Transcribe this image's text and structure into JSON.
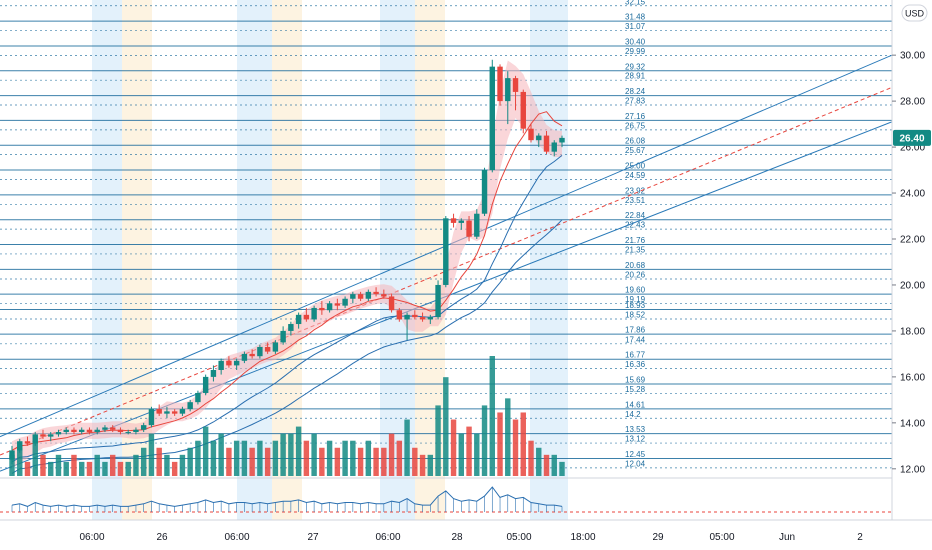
{
  "currency": "USD",
  "last_price": "26.40",
  "colors": {
    "up": "#138a84",
    "down": "#e8463e",
    "level_line": "#1a6a9c",
    "channel": "#2a7ab8",
    "ma_red": "#e8463e",
    "ma_blue": "#2a6fb0",
    "price_tag": "#138a84",
    "band_blue": "#e3f1fb",
    "band_orange": "#fdf3e1",
    "shade": "#f5b5b9"
  },
  "chart_data": {
    "type": "candlestick",
    "x_tick_labels": [
      "06:00",
      "26",
      "06:00",
      "27",
      "06:00",
      "28",
      "05:00",
      "18:00",
      "29",
      "05:00",
      "Jun",
      "2"
    ],
    "y_ticks": [
      12.0,
      14.0,
      16.0,
      18.0,
      20.0,
      22.0,
      24.0,
      26.0,
      28.0,
      30.0
    ],
    "y_tick_labels": [
      "12.00",
      "14.00",
      "16.00",
      "18.00",
      "20.00",
      "22.00",
      "24.00",
      "26.00",
      "28.00",
      "30.00"
    ],
    "ylim": [
      11.6,
      32.4
    ],
    "price_levels": [
      32.15,
      31.48,
      31.07,
      30.4,
      29.99,
      29.32,
      28.91,
      28.24,
      27.83,
      27.16,
      26.75,
      26.08,
      25.67,
      25.0,
      24.59,
      23.92,
      23.51,
      22.84,
      22.43,
      21.76,
      21.35,
      20.68,
      20.26,
      19.6,
      19.19,
      18.93,
      18.52,
      17.86,
      17.44,
      16.77,
      16.36,
      15.69,
      15.28,
      14.61,
      14.2,
      13.53,
      13.12,
      12.45,
      12.04
    ],
    "price_level_labels": [
      "32.15",
      "31.48",
      "31.07",
      "30.40",
      "29.99",
      "29.32",
      "28.91",
      "28.24",
      "27.83",
      "27.16",
      "26.75",
      "26.08",
      "25.67",
      "25.00",
      "24.59",
      "23.92",
      "23.51",
      "22.84",
      "22.43",
      "21.76",
      "21.35",
      "20.68",
      "20.26",
      "19.60",
      "19.19",
      "18.93",
      "18.52",
      "17.86",
      "17.44",
      "16.77",
      "16.36",
      "15.69",
      "15.28",
      "14.61",
      "14.2",
      "13.53",
      "13.12",
      "12.45",
      "12.04"
    ],
    "candles": [
      [
        12.4,
        13.0,
        12.2,
        12.8
      ],
      [
        12.8,
        13.3,
        12.7,
        13.2
      ],
      [
        13.2,
        13.4,
        13.0,
        13.1
      ],
      [
        13.1,
        13.6,
        13.0,
        13.5
      ],
      [
        13.5,
        13.7,
        13.3,
        13.4
      ],
      [
        13.4,
        13.6,
        13.2,
        13.5
      ],
      [
        13.5,
        13.7,
        13.4,
        13.6
      ],
      [
        13.6,
        13.8,
        13.5,
        13.7
      ],
      [
        13.7,
        13.8,
        13.5,
        13.6
      ],
      [
        13.6,
        13.8,
        13.5,
        13.7
      ],
      [
        13.7,
        13.8,
        13.5,
        13.6
      ],
      [
        13.6,
        13.8,
        13.5,
        13.7
      ],
      [
        13.7,
        13.9,
        13.6,
        13.8
      ],
      [
        13.8,
        13.9,
        13.6,
        13.7
      ],
      [
        13.7,
        13.8,
        13.5,
        13.6
      ],
      [
        13.6,
        13.7,
        13.5,
        13.6
      ],
      [
        13.6,
        13.8,
        13.5,
        13.7
      ],
      [
        13.7,
        14.0,
        13.6,
        13.9
      ],
      [
        13.9,
        14.7,
        13.8,
        14.6
      ],
      [
        14.6,
        14.8,
        14.3,
        14.4
      ],
      [
        14.4,
        14.7,
        14.2,
        14.5
      ],
      [
        14.5,
        14.6,
        14.3,
        14.4
      ],
      [
        14.4,
        14.7,
        14.3,
        14.6
      ],
      [
        14.6,
        15.0,
        14.5,
        14.9
      ],
      [
        14.9,
        15.4,
        14.8,
        15.3
      ],
      [
        15.3,
        16.1,
        15.2,
        16.0
      ],
      [
        16.0,
        16.5,
        15.8,
        16.3
      ],
      [
        16.3,
        16.8,
        16.1,
        16.7
      ],
      [
        16.7,
        16.9,
        16.4,
        16.5
      ],
      [
        16.5,
        16.8,
        16.3,
        16.7
      ],
      [
        16.7,
        17.1,
        16.6,
        17.0
      ],
      [
        17.0,
        17.2,
        16.8,
        16.9
      ],
      [
        16.9,
        17.4,
        16.8,
        17.3
      ],
      [
        17.3,
        17.5,
        17.0,
        17.1
      ],
      [
        17.1,
        17.6,
        17.0,
        17.5
      ],
      [
        17.5,
        18.2,
        17.4,
        18.0
      ],
      [
        18.0,
        18.4,
        17.8,
        18.3
      ],
      [
        18.3,
        18.8,
        18.1,
        18.7
      ],
      [
        18.7,
        19.0,
        18.4,
        18.5
      ],
      [
        18.5,
        19.1,
        18.4,
        19.0
      ],
      [
        19.0,
        19.3,
        18.7,
        18.9
      ],
      [
        18.9,
        19.3,
        18.8,
        19.2
      ],
      [
        19.2,
        19.4,
        18.9,
        19.1
      ],
      [
        19.1,
        19.5,
        19.0,
        19.4
      ],
      [
        19.4,
        19.7,
        19.2,
        19.6
      ],
      [
        19.6,
        19.7,
        19.3,
        19.4
      ],
      [
        19.4,
        19.8,
        19.3,
        19.7
      ],
      [
        19.7,
        19.9,
        19.5,
        19.6
      ],
      [
        19.6,
        19.8,
        19.4,
        19.5
      ],
      [
        19.5,
        19.6,
        18.8,
        18.9
      ],
      [
        18.9,
        19.0,
        18.4,
        18.5
      ],
      [
        18.5,
        18.8,
        17.6,
        18.7
      ],
      [
        18.7,
        18.9,
        18.5,
        18.6
      ],
      [
        18.6,
        18.8,
        18.4,
        18.5
      ],
      [
        18.5,
        18.7,
        18.3,
        18.6
      ],
      [
        18.6,
        20.2,
        18.5,
        20.0
      ],
      [
        20.0,
        23.0,
        19.9,
        22.9
      ],
      [
        22.9,
        23.1,
        22.5,
        22.7
      ],
      [
        22.7,
        22.9,
        22.4,
        22.8
      ],
      [
        22.8,
        23.0,
        21.9,
        22.1
      ],
      [
        22.1,
        23.3,
        22.0,
        23.1
      ],
      [
        23.1,
        25.1,
        23.0,
        25.0
      ],
      [
        25.0,
        29.8,
        24.9,
        29.5
      ],
      [
        29.5,
        29.6,
        27.8,
        28.0
      ],
      [
        28.0,
        29.3,
        27.0,
        29.0
      ],
      [
        29.0,
        29.1,
        27.6,
        28.4
      ],
      [
        28.4,
        28.5,
        26.6,
        26.8
      ],
      [
        26.8,
        27.0,
        26.2,
        26.3
      ],
      [
        26.3,
        26.6,
        26.0,
        26.5
      ],
      [
        26.5,
        26.7,
        25.7,
        25.8
      ],
      [
        25.8,
        26.3,
        25.6,
        26.2
      ],
      [
        26.2,
        26.5,
        26.0,
        26.4
      ]
    ],
    "volume": [
      3,
      4,
      2,
      5,
      3,
      2,
      3,
      2,
      3,
      2,
      2,
      3,
      2,
      3,
      2,
      2,
      3,
      4,
      6,
      4,
      3,
      2,
      3,
      4,
      5,
      7,
      5,
      6,
      4,
      5,
      5,
      4,
      5,
      4,
      5,
      6,
      6,
      7,
      5,
      6,
      4,
      5,
      4,
      5,
      5,
      4,
      5,
      4,
      4,
      6,
      5,
      8,
      4,
      3,
      3,
      10,
      14,
      8,
      6,
      7,
      6,
      10,
      17,
      9,
      11,
      8,
      9,
      5,
      4,
      3,
      3,
      2
    ]
  }
}
